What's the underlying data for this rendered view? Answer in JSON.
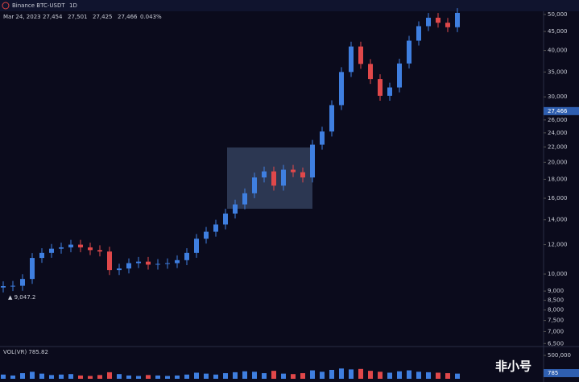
{
  "header": {
    "exchange": "Binance BTC-USDT",
    "interval": "1D",
    "date": "Mar 24, 2023",
    "open": "27,454",
    "high": "27,501",
    "low": "27,425",
    "close": "27,466",
    "change": "0.043%"
  },
  "chart_data": {
    "type": "candlestick",
    "log_scale": true,
    "up_color": "#3f7fe0",
    "down_color": "#e0484a",
    "open": [
      9200,
      9280,
      9300,
      9700,
      11050,
      11400,
      11700,
      11800,
      12000,
      11800,
      11600,
      11500,
      10250,
      10350,
      10700,
      10800,
      10600,
      10650,
      10700,
      10900,
      11400,
      12450,
      13000,
      13600,
      14550,
      15400,
      16500,
      18200,
      18900,
      17300,
      19100,
      18800,
      18200,
      22300,
      24200,
      28500,
      35000,
      41000,
      36800,
      33500,
      30200,
      31800,
      36900,
      42500,
      46500,
      49000,
      47500,
      46200
    ],
    "high": [
      9560,
      9580,
      9990,
      11380,
      11740,
      12050,
      12150,
      12360,
      12360,
      12150,
      11950,
      11850,
      10660,
      11020,
      11120,
      11120,
      10970,
      11020,
      11230,
      11740,
      12820,
      13390,
      14010,
      14990,
      15860,
      17000,
      18750,
      19470,
      19470,
      19670,
      19670,
      19360,
      22970,
      24930,
      29360,
      36050,
      42230,
      42230,
      37900,
      34510,
      32750,
      38010,
      43780,
      47900,
      50470,
      50470,
      48930,
      52000
    ],
    "low": [
      8920,
      9000,
      9020,
      9410,
      10720,
      11060,
      11350,
      11450,
      11450,
      11250,
      11160,
      9940,
      9940,
      10040,
      10380,
      10280,
      10280,
      10330,
      10380,
      10570,
      11060,
      12080,
      12610,
      13190,
      14110,
      14940,
      16010,
      17650,
      16780,
      16780,
      18240,
      17650,
      17650,
      21630,
      23470,
      27650,
      33950,
      35700,
      32500,
      29290,
      29290,
      30850,
      35790,
      41230,
      45110,
      46080,
      44810,
      44810
    ],
    "close": [
      9280,
      9300,
      9700,
      11050,
      11400,
      11700,
      11800,
      12000,
      11800,
      11600,
      11500,
      10250,
      10350,
      10700,
      10800,
      10600,
      10650,
      10700,
      10900,
      11400,
      12450,
      13000,
      13600,
      14550,
      15400,
      16500,
      18200,
      18900,
      17300,
      19100,
      18800,
      18200,
      22300,
      24200,
      28500,
      35000,
      41000,
      36800,
      33500,
      30200,
      31800,
      36900,
      42500,
      46500,
      49000,
      47500,
      46200,
      50500
    ],
    "ylim": [
      6380,
      51000
    ],
    "yticks": [
      {
        "value": 6500,
        "label": "6,500"
      },
      {
        "value": 7000,
        "label": "7,000"
      },
      {
        "value": 7500,
        "label": "7,500"
      },
      {
        "value": 8000,
        "label": "8,000"
      },
      {
        "value": 8500,
        "label": "8,500"
      },
      {
        "value": 9000,
        "label": "9,000"
      },
      {
        "value": 10000,
        "label": "10,000"
      },
      {
        "value": 12000,
        "label": "12,000"
      },
      {
        "value": 14000,
        "label": "14,000"
      },
      {
        "value": 16000,
        "label": "16,000"
      },
      {
        "value": 18000,
        "label": "18,000"
      },
      {
        "value": 20000,
        "label": "20,000"
      },
      {
        "value": 22000,
        "label": "22,000"
      },
      {
        "value": 24000,
        "label": "24,000"
      },
      {
        "value": 26000,
        "label": "26,000"
      },
      {
        "value": 30000,
        "label": "30,000"
      },
      {
        "value": 35000,
        "label": "35,000"
      },
      {
        "value": 40000,
        "label": "40,000"
      },
      {
        "value": 45000,
        "label": "45,000"
      },
      {
        "value": 50000,
        "label": "50,000"
      }
    ],
    "last_price": {
      "value": 27466,
      "label": "27,466"
    },
    "low_marker": {
      "value": 9047.2,
      "label": "▲ 9,047.2"
    },
    "volume": {
      "title": "VOL(VR) 785.82",
      "values": [
        90000,
        70000,
        120000,
        150000,
        110000,
        80000,
        90000,
        100000,
        70000,
        60000,
        80000,
        140000,
        100000,
        70000,
        60000,
        80000,
        70000,
        60000,
        70000,
        90000,
        130000,
        110000,
        90000,
        120000,
        140000,
        160000,
        150000,
        120000,
        170000,
        110000,
        100000,
        120000,
        180000,
        150000,
        190000,
        220000,
        200000,
        210000,
        170000,
        150000,
        130000,
        160000,
        180000,
        150000,
        140000,
        130000,
        120000,
        110000
      ],
      "ylim": [
        0,
        500000
      ],
      "yticks": [
        {
          "value": 500000,
          "label": "500,000"
        }
      ],
      "last": "785"
    },
    "watermark": "非小号"
  }
}
